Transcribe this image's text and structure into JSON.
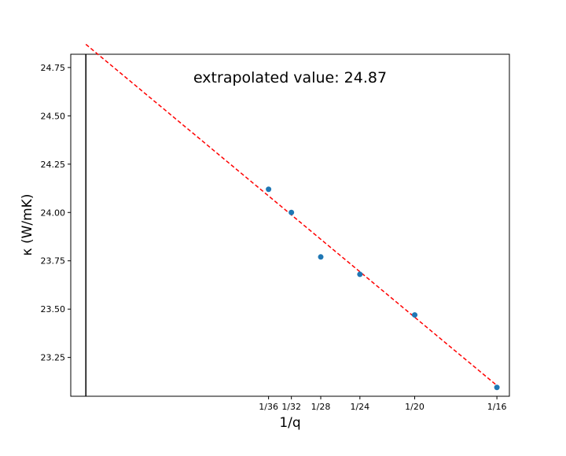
{
  "chart_data": {
    "type": "scatter",
    "annotation": "extrapolated value: 24.87",
    "xlabel": "1/q",
    "ylabel": "κ (W/mK)",
    "xlim": [
      -0.0023,
      0.0644
    ],
    "ylim": [
      23.0493,
      24.8186
    ],
    "x_ticks": [
      {
        "value": 0.027778,
        "label": "1/36"
      },
      {
        "value": 0.03125,
        "label": "1/32"
      },
      {
        "value": 0.035714,
        "label": "1/28"
      },
      {
        "value": 0.041667,
        "label": "1/24"
      },
      {
        "value": 0.05,
        "label": "1/20"
      },
      {
        "value": 0.0625,
        "label": "1/16"
      }
    ],
    "y_ticks": [
      23.25,
      23.5,
      23.75,
      24.0,
      24.25,
      24.5,
      24.75
    ],
    "points": [
      {
        "x": 0.027778,
        "y": 24.12
      },
      {
        "x": 0.03125,
        "y": 24.0
      },
      {
        "x": 0.035714,
        "y": 23.77
      },
      {
        "x": 0.041667,
        "y": 23.68
      },
      {
        "x": 0.05,
        "y": 23.47
      },
      {
        "x": 0.0625,
        "y": 23.095
      }
    ],
    "fit_line": {
      "x": [
        0,
        0.0625
      ],
      "y": [
        24.87,
        23.105
      ]
    },
    "vertical_line_x": 0,
    "colors": {
      "points": "#1f77b4",
      "fit_line": "#ff0000",
      "vertical_line": "#000000"
    },
    "grid": false
  }
}
